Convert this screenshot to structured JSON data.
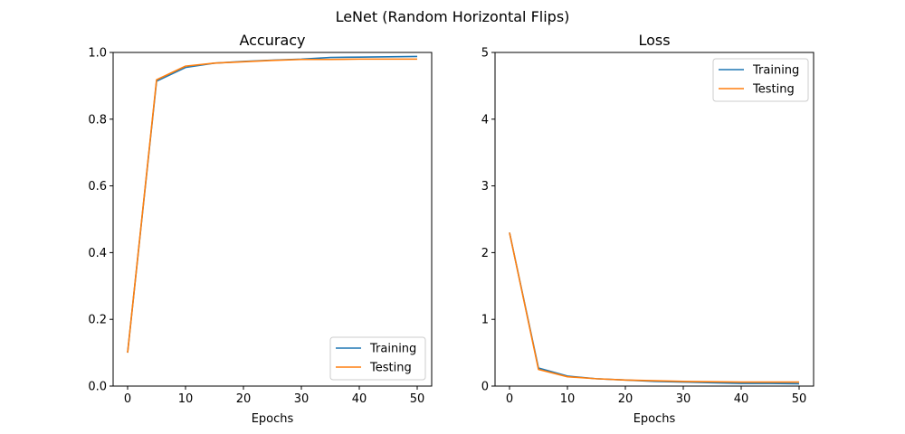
{
  "figure": {
    "title": "LeNet (Random Horizontal Flips)"
  },
  "chart_data": [
    {
      "type": "line",
      "title": "Accuracy",
      "xlabel": "Epochs",
      "ylabel": "",
      "xlim": [
        -2.5,
        52.5
      ],
      "ylim": [
        0,
        1.0
      ],
      "x_ticks": [
        0,
        10,
        20,
        30,
        40,
        50
      ],
      "y_ticks": [
        0.0,
        0.2,
        0.4,
        0.6,
        0.8,
        1.0
      ],
      "x_tick_labels": [
        "0",
        "10",
        "20",
        "30",
        "40",
        "50"
      ],
      "y_tick_labels": [
        "0.0",
        "0.2",
        "0.4",
        "0.6",
        "0.8",
        "1.0"
      ],
      "x": [
        0,
        5,
        10,
        15,
        20,
        25,
        30,
        35,
        40,
        45,
        50
      ],
      "series": [
        {
          "name": "Training",
          "color": "#1f77b4",
          "values": [
            0.1,
            0.914,
            0.955,
            0.968,
            0.973,
            0.977,
            0.98,
            0.985,
            0.986,
            0.987,
            0.988
          ]
        },
        {
          "name": "Testing",
          "color": "#ff7f0e",
          "values": [
            0.1,
            0.918,
            0.959,
            0.968,
            0.972,
            0.976,
            0.979,
            0.979,
            0.98,
            0.98,
            0.98
          ]
        }
      ],
      "legend": "lower-right",
      "grid": false
    },
    {
      "type": "line",
      "title": "Loss",
      "xlabel": "Epochs",
      "ylabel": "",
      "xlim": [
        -2.5,
        52.5
      ],
      "ylim": [
        0,
        5
      ],
      "x_ticks": [
        0,
        10,
        20,
        30,
        40,
        50
      ],
      "y_ticks": [
        0,
        1,
        2,
        3,
        4,
        5
      ],
      "x_tick_labels": [
        "0",
        "10",
        "20",
        "30",
        "40",
        "50"
      ],
      "y_tick_labels": [
        "0",
        "1",
        "2",
        "3",
        "4",
        "5"
      ],
      "x": [
        0,
        5,
        10,
        15,
        20,
        25,
        30,
        35,
        40,
        45,
        50
      ],
      "series": [
        {
          "name": "Training",
          "color": "#1f77b4",
          "values": [
            2.3,
            0.27,
            0.15,
            0.11,
            0.09,
            0.07,
            0.06,
            0.05,
            0.04,
            0.04,
            0.035
          ]
        },
        {
          "name": "Testing",
          "color": "#ff7f0e",
          "values": [
            2.3,
            0.25,
            0.14,
            0.11,
            0.09,
            0.08,
            0.07,
            0.065,
            0.06,
            0.06,
            0.06
          ]
        }
      ],
      "legend": "upper-right",
      "grid": false
    }
  ]
}
